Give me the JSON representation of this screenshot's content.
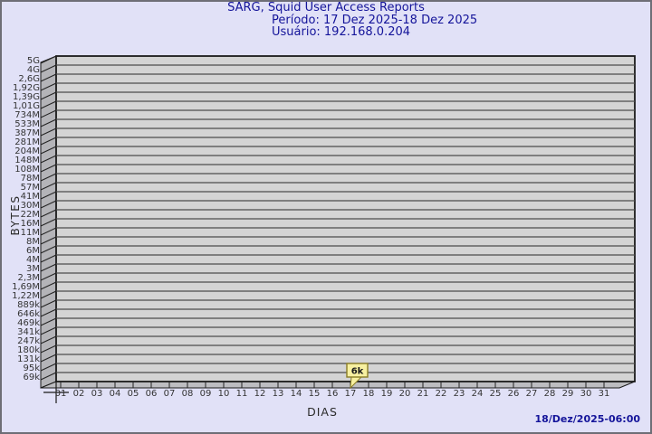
{
  "window": {
    "background": "#e1e1f7",
    "border_color": "#6e6e76"
  },
  "header": {
    "title": "SARG, Squid User Access Reports",
    "period": "Período: 17 Dez 2025-18 Dez 2025",
    "user": "Usuário: 192.168.0.204"
  },
  "footer": {
    "generated": "18/Dez/2025-06:00"
  },
  "chart_data": {
    "type": "bar",
    "title": "SARG, Squid User Access Reports",
    "subtitle": "Período: 17 Dez 2025-18 Dez 2025 — Usuário: 192.168.0.204",
    "xlabel": "DIAS",
    "ylabel": "BYTES",
    "categories": [
      "01",
      "02",
      "03",
      "04",
      "05",
      "06",
      "07",
      "08",
      "09",
      "10",
      "11",
      "12",
      "13",
      "14",
      "15",
      "16",
      "17",
      "18",
      "19",
      "20",
      "21",
      "22",
      "23",
      "24",
      "25",
      "26",
      "27",
      "28",
      "29",
      "30",
      "31"
    ],
    "series": [
      {
        "name": "bytes",
        "values": [
          0,
          0,
          0,
          0,
          0,
          0,
          0,
          0,
          0,
          0,
          0,
          0,
          0,
          0,
          0,
          0,
          6000,
          0,
          0,
          0,
          0,
          0,
          0,
          0,
          0,
          0,
          0,
          0,
          0,
          0,
          0
        ]
      }
    ],
    "annotations": [
      {
        "category": "17",
        "label": "6k",
        "value_bytes": 6000
      }
    ],
    "y_axis": {
      "scale": "logarithmic",
      "min_label": "69k",
      "max_label": "5G",
      "tick_labels": [
        "5G",
        "4G",
        "2,6G",
        "1,92G",
        "1,39G",
        "1,01G",
        "734M",
        "533M",
        "387M",
        "281M",
        "204M",
        "148M",
        "108M",
        "78M",
        "57M",
        "41M",
        "30M",
        "22M",
        "16M",
        "11M",
        "8M",
        "6M",
        "4M",
        "3M",
        "2,3M",
        "1,69M",
        "1,22M",
        "889k",
        "646k",
        "469k",
        "341k",
        "247k",
        "180k",
        "131k",
        "95k",
        "69k"
      ]
    },
    "grid": true,
    "legend": null,
    "style_3d": true,
    "colors": {
      "plot_bg": "#d4d4d4",
      "wall": "#b4b4b8",
      "floor": "#bdbdc1",
      "gridline": "#4c4c4c",
      "edge": "#1a1a1a",
      "tick_color": "#222222",
      "title_text": "#14149a",
      "tick_text": "#333333",
      "flag_fill": "#f7f0a0",
      "flag_border": "#8a7d26",
      "flag_text": "#1a1a1a"
    }
  }
}
